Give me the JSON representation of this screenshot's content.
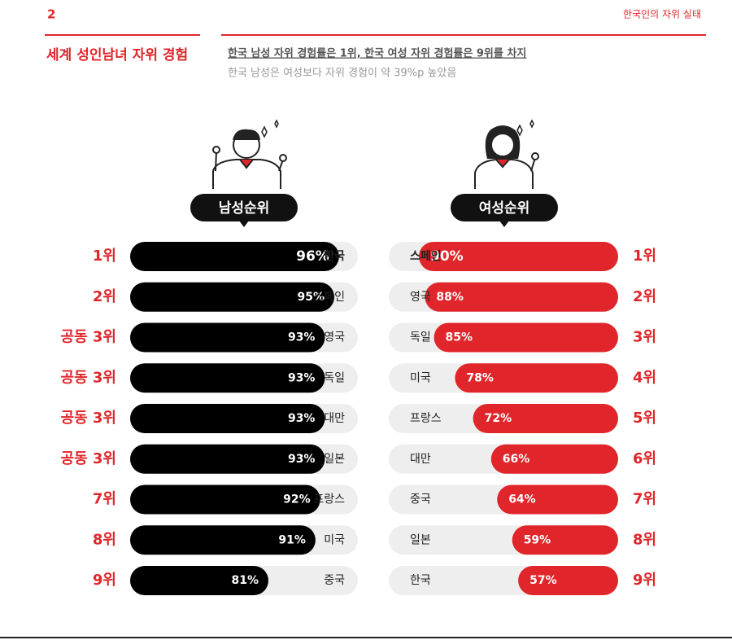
{
  "page_number": "2",
  "header": "한국인의 자위 실태",
  "title": "세계 성인남녀 자위 경험",
  "subtitle": "한국 남성 자위 경험률은 1위, 한국 여성 자위 경험률은 9위를 차지",
  "note": "한국 남성은 여성보다 자위 경험이 약 39%p 높았음",
  "chart_data": [
    {
      "type": "bar",
      "title": "남성순위",
      "bar_anchor": "left",
      "color": "#000000",
      "ranks": [
        "1위",
        "2위",
        "공동 3위",
        "공동 3위",
        "공동 3위",
        "공동 3위",
        "7위",
        "8위",
        "9위"
      ],
      "categories": [
        "한국",
        "스페인",
        "영국",
        "독일",
        "대만",
        "일본",
        "프랑스",
        "미국",
        "중국"
      ],
      "values": [
        96,
        95,
        93,
        93,
        93,
        93,
        92,
        91,
        81
      ],
      "value_labels": [
        "96%",
        "95%",
        "93%",
        "93%",
        "93%",
        "93%",
        "92%",
        "91%",
        "81%"
      ],
      "xlim": [
        62,
        100
      ]
    },
    {
      "type": "bar",
      "title": "여성순위",
      "bar_anchor": "right",
      "color": "#e0262b",
      "ranks": [
        "1위",
        "2위",
        "3위",
        "4위",
        "5위",
        "6위",
        "7위",
        "8위",
        "9위"
      ],
      "categories": [
        "스페인",
        "영국",
        "독일",
        "미국",
        "프랑스",
        "대만",
        "중국",
        "일본",
        "한국"
      ],
      "values": [
        90,
        88,
        85,
        78,
        72,
        66,
        64,
        59,
        57
      ],
      "value_labels": [
        "90%",
        "88%",
        "85%",
        "78%",
        "72%",
        "66%",
        "64%",
        "59%",
        "57%"
      ],
      "xlim": [
        40,
        100
      ]
    }
  ]
}
